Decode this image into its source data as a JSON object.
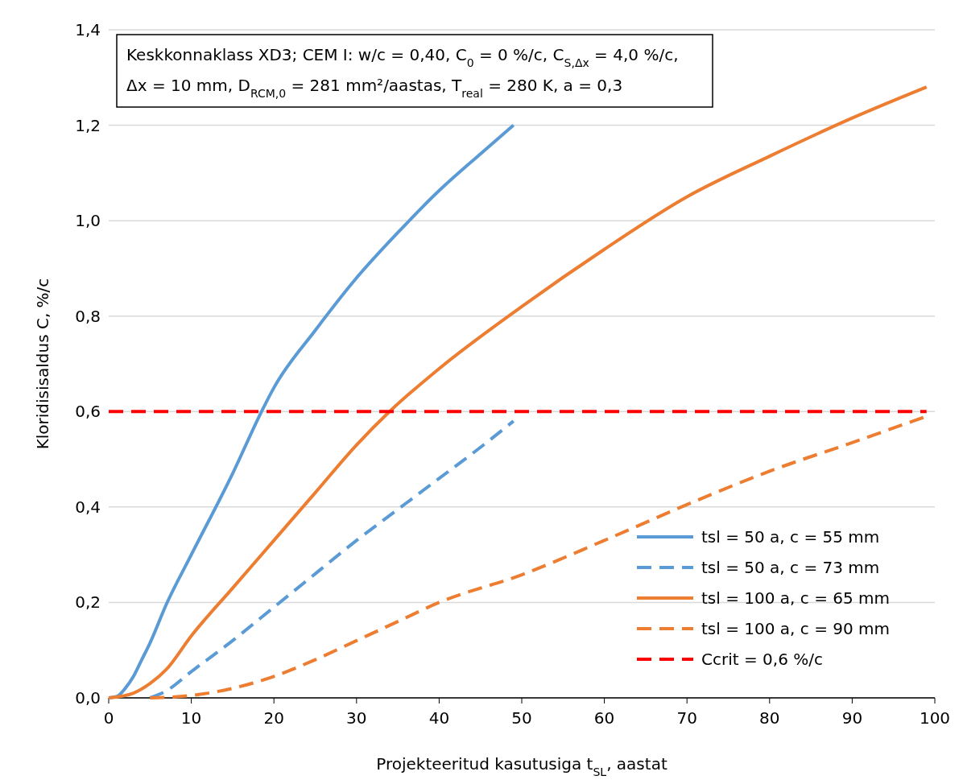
{
  "chart_data": {
    "type": "line",
    "xlabel": "Projekteeritud kasutusiga t$_{SL}$, aastat",
    "ylabel": "Kloridisisaldus C, %/c",
    "annotations": [
      "Keskkonnaklass XD3; CEM I: w/c = 0,40, C$_{0}$ = 0 %/c, C$_{S,Δx}$ = 4,0 %/c,",
      "Δx = 10 mm, D$_{RCM,0}$ = 281 mm²/aastas, T$_{real}$ = 280 K, a = 0,3"
    ],
    "xlim": [
      0,
      100
    ],
    "xticks": [
      0,
      10,
      20,
      30,
      40,
      50,
      60,
      70,
      80,
      90,
      100
    ],
    "ylim": [
      0,
      1.4
    ],
    "yticks": [
      {
        "value": 0,
        "label": "0,0"
      },
      {
        "value": 0.2,
        "label": "0,2"
      },
      {
        "value": 0.4,
        "label": "0,4"
      },
      {
        "value": 0.6,
        "label": "0,6"
      },
      {
        "value": 0.8,
        "label": "0,8"
      },
      {
        "value": 1.0,
        "label": "1,0"
      },
      {
        "value": 1.2,
        "label": "1,2"
      },
      {
        "value": 1.4,
        "label": "1,4"
      }
    ],
    "grid": "y",
    "legend": "bottom right",
    "series": [
      {
        "name": "tsl = 50 a, c = 55 mm",
        "color": "#5b9bd5",
        "line_style": "solid",
        "x": [
          0,
          1,
          2,
          3,
          4,
          5,
          7,
          10,
          15,
          18.5,
          20,
          25,
          30,
          35,
          40,
          45,
          49
        ],
        "values": [
          0,
          0.003,
          0.02,
          0.045,
          0.08,
          0.115,
          0.197,
          0.3,
          0.47,
          0.6,
          0.65,
          0.77,
          0.88,
          0.975,
          1.063,
          1.14,
          1.2
        ]
      },
      {
        "name": "tsl = 50 a, c = 73 mm",
        "color": "#5b9bd5",
        "line_style": "dashed",
        "x": [
          5,
          7,
          10,
          15,
          20,
          25,
          30,
          35,
          40,
          45,
          49
        ],
        "values": [
          0,
          0.015,
          0.055,
          0.12,
          0.19,
          0.26,
          0.33,
          0.395,
          0.46,
          0.525,
          0.58
        ]
      },
      {
        "name": "tsl = 100 a, c = 65 mm",
        "color": "#ed7d31",
        "line_style": "solid",
        "x": [
          0,
          3,
          5,
          7,
          10,
          15,
          20,
          25,
          30,
          34,
          40,
          50,
          60,
          70,
          80,
          90,
          99
        ],
        "values": [
          0,
          0.01,
          0.03,
          0.06,
          0.13,
          0.23,
          0.33,
          0.43,
          0.53,
          0.6,
          0.69,
          0.82,
          0.94,
          1.05,
          1.135,
          1.215,
          1.28
        ]
      },
      {
        "name": "tsl = 100 a, c = 90 mm",
        "color": "#ed7d31",
        "line_style": "dashed",
        "x": [
          5,
          10,
          15,
          20,
          25,
          30,
          35,
          40,
          50,
          60,
          70,
          80,
          90,
          99
        ],
        "values": [
          0,
          0.005,
          0.02,
          0.045,
          0.08,
          0.12,
          0.16,
          0.2,
          0.258,
          0.33,
          0.405,
          0.475,
          0.535,
          0.59
        ]
      },
      {
        "name": "Ccrit = 0,6 %/c",
        "color": "#ff0000",
        "line_style": "dashed",
        "x": [
          0,
          99
        ],
        "values": [
          0.6,
          0.6
        ]
      }
    ]
  }
}
